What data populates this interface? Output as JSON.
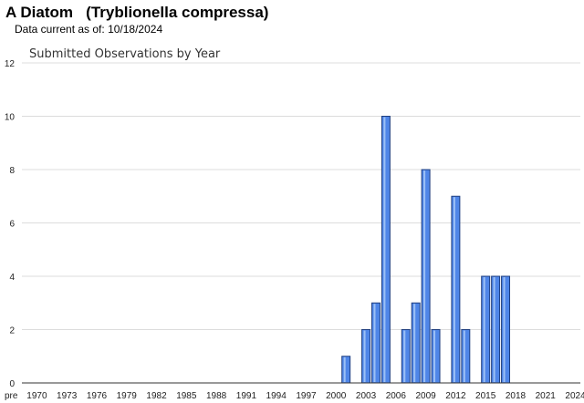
{
  "header": {
    "title": "A Diatom   (Tryblionella compressa)",
    "data_current_label": "Data current as of:",
    "data_current_date": "10/18/2024"
  },
  "chart_data": {
    "type": "bar",
    "title": "Submitted Observations by Year",
    "xlabel": "",
    "ylabel": "",
    "ylim": [
      0,
      12
    ],
    "yticks": [
      0,
      2,
      4,
      6,
      8,
      10,
      12
    ],
    "grid": true,
    "legend": "none",
    "bar_color": "#4f86e8",
    "bar_edge_color": "#1f3f80",
    "categories": [
      "pre",
      "1970",
      "1971",
      "1972",
      "1973",
      "1974",
      "1975",
      "1976",
      "1977",
      "1978",
      "1979",
      "1980",
      "1981",
      "1982",
      "1983",
      "1984",
      "1985",
      "1986",
      "1987",
      "1988",
      "1989",
      "1990",
      "1991",
      "1992",
      "1993",
      "1994",
      "1995",
      "1996",
      "1997",
      "1998",
      "1999",
      "2000",
      "2001",
      "2002",
      "2003",
      "2004",
      "2005",
      "2006",
      "2007",
      "2008",
      "2009",
      "2010",
      "2011",
      "2012",
      "2013",
      "2014",
      "2015",
      "2016",
      "2017",
      "2018",
      "2019",
      "2020",
      "2021",
      "2022",
      "2023",
      "2024"
    ],
    "tick_labels": [
      "pre",
      "1970",
      "1973",
      "1976",
      "1979",
      "1982",
      "1985",
      "1988",
      "1991",
      "1994",
      "1997",
      "2000",
      "2003",
      "2006",
      "2009",
      "2012",
      "2015",
      "2018",
      "2021",
      "2024"
    ],
    "values": [
      0,
      0,
      0,
      0,
      0,
      0,
      0,
      0,
      0,
      0,
      0,
      0,
      0,
      0,
      0,
      0,
      0,
      0,
      0,
      0,
      0,
      0,
      0,
      0,
      0,
      0,
      0,
      0,
      0,
      0,
      0,
      0,
      1,
      0,
      2,
      3,
      10,
      0,
      2,
      3,
      8,
      2,
      0,
      7,
      2,
      0,
      4,
      4,
      4,
      0,
      0,
      0,
      0,
      0,
      0,
      0
    ]
  }
}
